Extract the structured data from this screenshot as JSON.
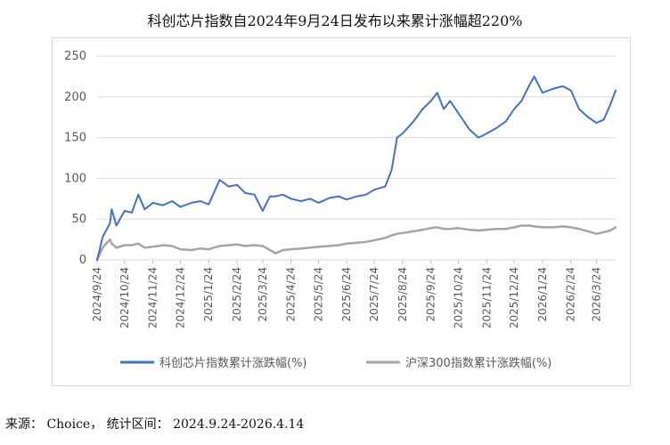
{
  "title": "科创芯片指数自2024年9月24日发布以来累计涨幅超220%",
  "source": "来源： Choice， 统计区间： 2024.9.24-2026.4.14",
  "chart_data": {
    "type": "line",
    "title": "科创芯片指数自2024年9月24日发布以来累计涨幅超220%",
    "ylim": [
      0,
      250
    ],
    "y_ticks": [
      0,
      50,
      100,
      150,
      200,
      250
    ],
    "x_tick_labels": [
      "2024/9/24",
      "2024/10/24",
      "2024/11/24",
      "2024/12/24",
      "2025/1/24",
      "2025/2/24",
      "2025/3/24",
      "2025/4/24",
      "2025/5/24",
      "2025/6/24",
      "2025/7/24",
      "2025/8/24",
      "2025/9/24",
      "2025/10/24",
      "2025/11/24",
      "2025/12/24",
      "2026/1/24",
      "2026/2/24",
      "2026/3/24"
    ],
    "x_end": "2026/4/14",
    "grid": true,
    "legend_position": "bottom",
    "x": [
      "2024/9/24",
      "2024/9/30",
      "2024/10/8",
      "2024/10/10",
      "2024/10/15",
      "2024/10/24",
      "2024/11/1",
      "2024/11/8",
      "2024/11/15",
      "2024/11/24",
      "2024/12/5",
      "2024/12/15",
      "2024/12/24",
      "2025/1/5",
      "2025/1/15",
      "2025/1/24",
      "2025/2/5",
      "2025/2/15",
      "2025/2/24",
      "2025/3/5",
      "2025/3/15",
      "2025/3/24",
      "2025/4/1",
      "2025/4/7",
      "2025/4/15",
      "2025/4/24",
      "2025/5/5",
      "2025/5/15",
      "2025/5/24",
      "2025/6/5",
      "2025/6/15",
      "2025/6/24",
      "2025/7/5",
      "2025/7/15",
      "2025/7/24",
      "2025/8/5",
      "2025/8/12",
      "2025/8/18",
      "2025/8/24",
      "2025/9/5",
      "2025/9/15",
      "2025/9/24",
      "2025/10/1",
      "2025/10/8",
      "2025/10/15",
      "2025/10/24",
      "2025/11/5",
      "2025/11/15",
      "2025/11/24",
      "2025/12/5",
      "2025/12/15",
      "2025/12/24",
      "2026/1/1",
      "2026/1/10",
      "2026/1/15",
      "2026/1/24",
      "2026/2/5",
      "2026/2/15",
      "2026/2/24",
      "2026/3/5",
      "2026/3/15",
      "2026/3/24",
      "2026/4/1",
      "2026/4/8",
      "2026/4/14"
    ],
    "series": [
      {
        "name": "科创芯片指数累计涨跌幅(%)",
        "color": "#4472c4",
        "values": [
          0,
          28,
          45,
          62,
          42,
          60,
          58,
          80,
          62,
          70,
          67,
          72,
          65,
          70,
          72,
          68,
          98,
          90,
          92,
          82,
          80,
          60,
          78,
          78,
          80,
          75,
          72,
          75,
          70,
          76,
          78,
          74,
          78,
          80,
          86,
          90,
          110,
          150,
          155,
          170,
          185,
          195,
          205,
          185,
          195,
          180,
          160,
          150,
          155,
          162,
          170,
          185,
          195,
          215,
          225,
          205,
          210,
          213,
          208,
          185,
          175,
          168,
          172,
          190,
          208
        ]
      },
      {
        "name": "沪深300指数累计涨跌幅(%)",
        "color": "#a5a5a5",
        "values": [
          0,
          15,
          25,
          20,
          15,
          18,
          18,
          20,
          15,
          16,
          18,
          17,
          13,
          12,
          14,
          13,
          17,
          18,
          19,
          17,
          18,
          17,
          12,
          8,
          12,
          13,
          14,
          15,
          16,
          17,
          18,
          20,
          21,
          22,
          24,
          27,
          30,
          32,
          33,
          35,
          37,
          39,
          40,
          38,
          38,
          39,
          37,
          36,
          37,
          38,
          38,
          40,
          42,
          42,
          41,
          40,
          40,
          41,
          40,
          38,
          35,
          32,
          34,
          36,
          40
        ]
      }
    ]
  }
}
